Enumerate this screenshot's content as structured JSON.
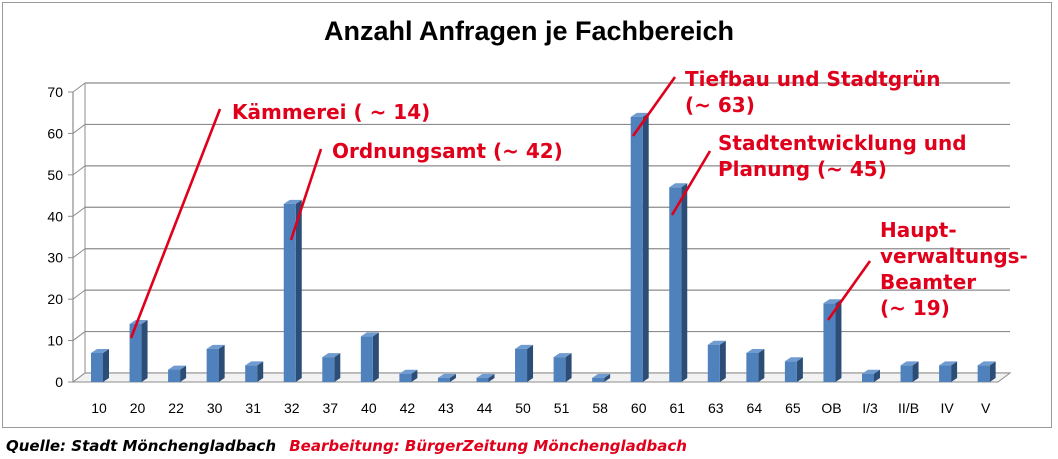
{
  "chart_data": {
    "type": "bar",
    "title": "Anzahl Anfragen je Fachbereich",
    "xlabel": "",
    "ylabel": "",
    "ylim": [
      0,
      70
    ],
    "yticks": [
      0,
      10,
      20,
      30,
      40,
      50,
      60,
      70
    ],
    "grid": true,
    "legend": "none",
    "categories": [
      "10",
      "20",
      "22",
      "30",
      "31",
      "32",
      "37",
      "40",
      "42",
      "43",
      "44",
      "50",
      "51",
      "58",
      "60",
      "61",
      "63",
      "64",
      "65",
      "OB",
      "I/3",
      "II/B",
      "IV",
      "V"
    ],
    "values": [
      7,
      14,
      3,
      8,
      4,
      43,
      6,
      11,
      2,
      1,
      1,
      8,
      6,
      1,
      64,
      47,
      9,
      7,
      5,
      19,
      2,
      4,
      4,
      4
    ],
    "annotations": [
      {
        "lines": [
          "Kämmerei ( ~ 14)"
        ],
        "target_category": "20"
      },
      {
        "lines": [
          "Ordnungsamt (~ 42)"
        ],
        "target_category": "32"
      },
      {
        "lines": [
          "Tiefbau und Stadtgrün",
          "(~ 63)"
        ],
        "target_category": "60"
      },
      {
        "lines": [
          "Stadtentwicklung und",
          "Planung (~ 45)"
        ],
        "target_category": "61"
      },
      {
        "lines": [
          "Haupt-",
          "verwaltungs-",
          "Beamter",
          "(~ 19)"
        ],
        "target_category": "OB"
      }
    ],
    "colors": {
      "bar": "#4f81bd",
      "bar_dark": "#2c4d75",
      "annotation": "#e0001b",
      "grid": "#8c8c8c"
    }
  },
  "footer": {
    "source": "Quelle: Stadt Mönchengladbach",
    "editing": "Bearbeitung: BürgerZeitung Mönchengladbach"
  }
}
